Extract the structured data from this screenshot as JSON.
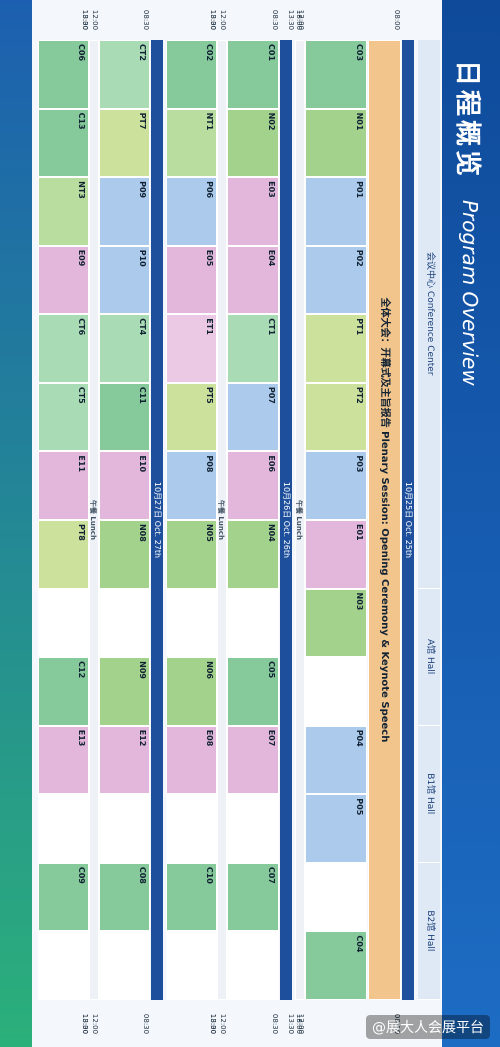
{
  "header": {
    "title_cn": "日程概览",
    "title_en": "Program Overview"
  },
  "venues": [
    "会议中心 Conference Center",
    "A馆 Hall",
    "B1馆 Hall",
    "B2馆 Hall"
  ],
  "days": [
    {
      "label": "10月25日 Oct. 25th",
      "times": [
        "08:00",
        "12:00",
        "13:30",
        "18:00"
      ],
      "plenary": "全体大会：开幕式及主旨报告 Plenary Session: Opening Ceremony & Keynote Speech",
      "lunch": "午餐 Lunch",
      "rows": [
        [
          "C03",
          "N01",
          "P01",
          "P02",
          "PT1",
          "PT2",
          "P03",
          "E01",
          "N03",
          null,
          "P04",
          "P05",
          null,
          "C04"
        ]
      ]
    },
    {
      "label": "10月26日 Oct. 26th",
      "times": [
        "08:30",
        "12:00",
        "13:30",
        "18:00"
      ],
      "lunch": "午餐 Lunch",
      "rows": [
        [
          "C01",
          "N02",
          "E03",
          "E04",
          "CT1",
          "P07",
          "E06",
          "N04",
          null,
          "C05",
          "E07",
          null,
          "C07",
          null
        ],
        [
          "C02",
          "NT1",
          "P06",
          "E05",
          "ET1",
          "PT5",
          "P08",
          "N05",
          null,
          "N06",
          "E08",
          null,
          "C10",
          null
        ]
      ]
    },
    {
      "label": "10月27日 Oct. 27th",
      "times": [
        "08:30",
        "12:00",
        "13:30",
        "18:00"
      ],
      "lunch": "午餐 Lunch",
      "rows": [
        [
          "CT2",
          "PT7",
          "P09",
          "P10",
          "CT4",
          "C11",
          "E10",
          "N08",
          null,
          "N09",
          "E12",
          null,
          "C08",
          null
        ],
        [
          "C06",
          "C13",
          "NT3",
          "E09",
          "CT6",
          "CT5",
          "E11",
          "PT8",
          null,
          "C12",
          "E13",
          null,
          "C09",
          null
        ]
      ]
    }
  ],
  "colors": {
    "CT": "#a9dbb4",
    "NT": "#b9dd9f",
    "ET": "#ebc8e3",
    "PT": "#cbe19c",
    "C": "#86c99a",
    "N": "#a3d28c",
    "P": "#abcaec",
    "E": "#e3b7db"
  },
  "watermark": "@展大人会展平台"
}
